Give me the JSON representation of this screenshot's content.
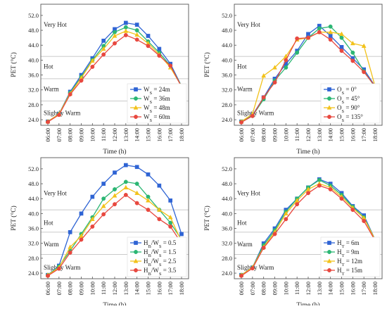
{
  "colors": {
    "blue": "#2f64d4",
    "teal": "#2bb673",
    "yellow": "#f2c21b",
    "red": "#e8483f",
    "zone_line": "#b8b8b8",
    "frame": "#555555"
  },
  "chart_data": [
    {
      "type": "line",
      "xlabel": "Time (h)",
      "ylabel": "PET (°C)",
      "ylim": [
        22.5,
        55
      ],
      "yticks": [
        24,
        28,
        32,
        36,
        40,
        44,
        48,
        52
      ],
      "x": [
        "06:00",
        "07:00",
        "08:00",
        "09:00",
        "10:00",
        "11:00",
        "12:00",
        "13:00",
        "14:00",
        "15:00",
        "16:00",
        "17:00",
        "18:00"
      ],
      "zones": [
        {
          "label": "Very Hot",
          "at": 49.5
        },
        {
          "label": "Hot",
          "at": 38.3
        },
        {
          "label": "Warm",
          "at": 32.2
        },
        {
          "label": "Slightly Warm",
          "at": 25.8
        }
      ],
      "thresholds": [
        41,
        35,
        29
      ],
      "legend_position": "bottom-right",
      "series": [
        {
          "name": "W",
          "sub": "S",
          "suffix": " = 24m",
          "color_key": "blue",
          "marker": "square",
          "values": [
            23.5,
            25.5,
            31.5,
            36.0,
            40.5,
            45.2,
            48.3,
            50.0,
            49.5,
            46.5,
            43.0,
            39.0,
            33.0
          ]
        },
        {
          "name": "W",
          "sub": "S",
          "suffix": " = 36m",
          "color_key": "teal",
          "marker": "circle",
          "values": [
            23.5,
            25.5,
            31.2,
            35.5,
            40.0,
            43.8,
            47.5,
            48.8,
            48.0,
            45.0,
            42.0,
            38.5,
            33.0
          ]
        },
        {
          "name": "W",
          "sub": "S",
          "suffix": " = 48m",
          "color_key": "yellow",
          "marker": "triangle",
          "values": [
            23.5,
            25.5,
            31.0,
            35.2,
            39.8,
            43.0,
            46.5,
            47.8,
            46.8,
            44.5,
            41.5,
            38.0,
            33.0
          ]
        },
        {
          "name": "W",
          "sub": "S",
          "suffix": " = 60m",
          "color_key": "red",
          "marker": "circle",
          "values": [
            23.4,
            25.3,
            30.8,
            34.5,
            38.2,
            41.5,
            44.5,
            46.7,
            45.5,
            43.8,
            41.2,
            38.5,
            32.8
          ]
        }
      ]
    },
    {
      "type": "line",
      "xlabel": "Time (h)",
      "ylabel": "PET (°C)",
      "ylim": [
        22.5,
        55
      ],
      "yticks": [
        24,
        28,
        32,
        36,
        40,
        44,
        48,
        52
      ],
      "x": [
        "06:00",
        "07:00",
        "08:00",
        "09:00",
        "10:00",
        "11:00",
        "12:00",
        "13:00",
        "14:00",
        "15:00",
        "16:00",
        "17:00",
        "18:00"
      ],
      "zones": [
        {
          "label": "Very Hot",
          "at": 49.5
        },
        {
          "label": "Hot",
          "at": 38.3
        },
        {
          "label": "Warm",
          "at": 32.2
        },
        {
          "label": "Slightly Warm",
          "at": 25.8
        }
      ],
      "thresholds": [
        41,
        35,
        29
      ],
      "legend_position": "bottom-right",
      "series": [
        {
          "name": "O",
          "sub": "S",
          "suffix": " = 0°",
          "color_key": "blue",
          "marker": "square",
          "values": [
            23.5,
            25.2,
            30.0,
            35.0,
            39.0,
            42.5,
            47.0,
            49.2,
            46.5,
            43.5,
            40.5,
            37.5,
            33.0
          ]
        },
        {
          "name": "O",
          "sub": "S",
          "suffix": " = 45°",
          "color_key": "teal",
          "marker": "circle",
          "values": [
            23.5,
            25.0,
            29.5,
            34.5,
            38.0,
            42.0,
            46.0,
            48.5,
            49.0,
            46.0,
            42.0,
            37.0,
            32.8
          ]
        },
        {
          "name": "O",
          "sub": "S",
          "suffix": " = 90°",
          "color_key": "yellow",
          "marker": "triangle",
          "values": [
            23.5,
            25.5,
            35.8,
            38.0,
            41.0,
            45.5,
            46.0,
            47.5,
            47.5,
            47.0,
            44.5,
            43.8,
            33.0
          ]
        },
        {
          "name": "O",
          "sub": "S",
          "suffix": " = 135°",
          "color_key": "red",
          "marker": "circle",
          "values": [
            23.3,
            25.0,
            30.0,
            34.0,
            40.0,
            45.8,
            46.0,
            47.5,
            45.5,
            42.5,
            39.8,
            36.8,
            33.0
          ]
        }
      ]
    },
    {
      "type": "line",
      "xlabel": "Time (h)",
      "ylabel": "PET (°C)",
      "ylim": [
        22.5,
        55
      ],
      "yticks": [
        24,
        28,
        32,
        36,
        40,
        44,
        48,
        52
      ],
      "x": [
        "06:00",
        "07:00",
        "08:00",
        "09:00",
        "10:00",
        "11:00",
        "12:00",
        "13:00",
        "14:00",
        "15:00",
        "16:00",
        "17:00",
        "18:00"
      ],
      "zones": [
        {
          "label": "Very Hot",
          "at": 45.5
        },
        {
          "label": "Hot",
          "at": 37.5
        },
        {
          "label": "Warm",
          "at": 31.8
        },
        {
          "label": "Slightly Warm",
          "at": 25.5
        }
      ],
      "thresholds": [
        41,
        35,
        29
      ],
      "legend_position": "bottom-right",
      "series": [
        {
          "name": "H",
          "sub": "B",
          "suffix": "/W",
          "sub2": "S",
          "suffix2": " = 0.5",
          "color_key": "blue",
          "marker": "square",
          "values": [
            23.5,
            26.0,
            35.0,
            40.0,
            44.5,
            48.0,
            51.0,
            53.0,
            52.5,
            50.5,
            47.5,
            43.5,
            34.5
          ]
        },
        {
          "name": "H",
          "sub": "B",
          "suffix": "/W",
          "sub2": "S",
          "suffix2": " = 1.5",
          "color_key": "teal",
          "marker": "circle",
          "values": [
            23.5,
            25.8,
            30.0,
            34.5,
            39.0,
            44.0,
            46.5,
            48.5,
            48.0,
            44.5,
            41.0,
            37.5,
            33.0
          ]
        },
        {
          "name": "H",
          "sub": "B",
          "suffix": "/W",
          "sub2": "S",
          "suffix2": " = 2.5",
          "color_key": "yellow",
          "marker": "triangle",
          "values": [
            23.5,
            25.5,
            31.0,
            34.0,
            38.5,
            42.0,
            44.8,
            47.0,
            45.5,
            43.5,
            41.0,
            39.0,
            32.5
          ]
        },
        {
          "name": "H",
          "sub": "B",
          "suffix": "/W",
          "sub2": "S",
          "suffix2": " = 3.5",
          "color_key": "red",
          "marker": "circle",
          "values": [
            23.3,
            25.2,
            29.5,
            33.0,
            36.5,
            39.8,
            42.5,
            45.0,
            42.8,
            41.0,
            38.5,
            36.5,
            32.0
          ]
        }
      ]
    },
    {
      "type": "line",
      "xlabel": "Time (h)",
      "ylabel": "PET (°C)",
      "ylim": [
        22.5,
        55
      ],
      "yticks": [
        24,
        28,
        32,
        36,
        40,
        44,
        48,
        52
      ],
      "x": [
        "06:00",
        "07:00",
        "08:00",
        "09:00",
        "10:00",
        "11:00",
        "12:00",
        "13:00",
        "14:00",
        "15:00",
        "16:00",
        "17:00",
        "18:00"
      ],
      "zones": [
        {
          "label": "Very Hot",
          "at": 45.5
        },
        {
          "label": "Hot",
          "at": 37.5
        },
        {
          "label": "Warm",
          "at": 31.8
        },
        {
          "label": "Slightly Warm",
          "at": 25.5
        }
      ],
      "thresholds": [
        41,
        35,
        29
      ],
      "legend_position": "bottom-right",
      "series": [
        {
          "name": "H",
          "sub": "T",
          "suffix": " = 6m",
          "color_key": "blue",
          "marker": "square",
          "values": [
            23.5,
            25.5,
            32.0,
            36.0,
            41.0,
            44.0,
            47.0,
            49.2,
            48.0,
            45.5,
            42.0,
            39.5,
            33.0
          ]
        },
        {
          "name": "H",
          "sub": "T",
          "suffix": " = 9m",
          "color_key": "teal",
          "marker": "circle",
          "values": [
            23.5,
            25.5,
            31.5,
            35.5,
            40.5,
            44.0,
            47.0,
            49.0,
            47.5,
            45.0,
            41.8,
            39.0,
            33.0
          ]
        },
        {
          "name": "H",
          "sub": "T",
          "suffix": " = 12m",
          "color_key": "yellow",
          "marker": "triangle",
          "values": [
            23.5,
            25.5,
            31.0,
            35.0,
            40.0,
            43.5,
            46.5,
            48.0,
            47.0,
            44.5,
            41.5,
            38.8,
            33.0
          ]
        },
        {
          "name": "H",
          "sub": "T",
          "suffix": " = 15m",
          "color_key": "red",
          "marker": "circle",
          "values": [
            23.3,
            25.3,
            30.8,
            34.5,
            38.5,
            42.5,
            45.5,
            47.5,
            46.5,
            44.0,
            41.0,
            38.0,
            32.8
          ]
        }
      ]
    }
  ]
}
